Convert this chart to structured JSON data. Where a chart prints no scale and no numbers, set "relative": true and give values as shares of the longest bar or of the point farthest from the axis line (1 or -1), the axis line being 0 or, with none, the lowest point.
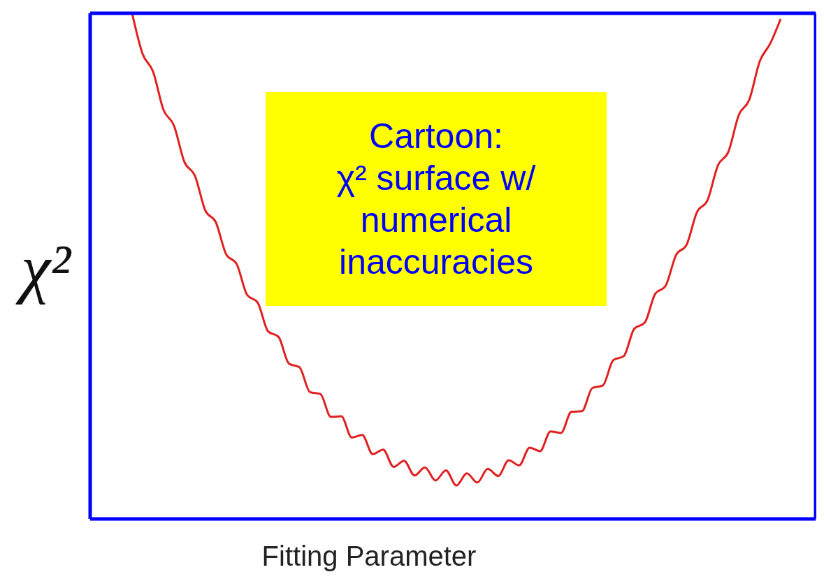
{
  "chart_data": {
    "type": "line",
    "xlabel": "Fitting Parameter",
    "ylabel": "χ²",
    "relative": true,
    "annotations": [
      "Cartoon:\nχ² surface w/\nnumerical\ninaccuracies"
    ],
    "categories": [
      null,
      null,
      null,
      null,
      null,
      null,
      null,
      null,
      null,
      null,
      null,
      null,
      null,
      null,
      null,
      null,
      null,
      null,
      null,
      null,
      null,
      null,
      null,
      null,
      null,
      null,
      null,
      null,
      null,
      null,
      null,
      null,
      null,
      null,
      null,
      null,
      null,
      null,
      null,
      null,
      null,
      null,
      null,
      null,
      null,
      null,
      null,
      null,
      null,
      null,
      null,
      null,
      null,
      null,
      null,
      null,
      null,
      null,
      null,
      null,
      null,
      null,
      null
    ],
    "series": [
      {
        "color": "#e02020",
        "values": [
          1.0,
          0.92,
          0.885,
          0.809,
          0.778,
          0.706,
          0.679,
          0.61,
          0.587,
          0.523,
          0.504,
          0.443,
          0.428,
          0.371,
          0.36,
          0.307,
          0.3,
          0.251,
          0.247,
          0.202,
          0.203,
          0.161,
          0.166,
          0.128,
          0.137,
          0.103,
          0.115,
          0.086,
          0.102,
          0.076,
          0.096,
          0.066,
          0.09,
          0.072,
          0.099,
          0.085,
          0.116,
          0.106,
          0.141,
          0.134,
          0.173,
          0.17,
          0.212,
          0.213,
          0.259,
          0.264,
          0.314,
          0.322,
          0.376,
          0.388,
          0.445,
          0.461,
          0.522,
          0.542,
          0.607,
          0.63,
          0.699,
          0.726,
          0.799,
          0.829,
          0.905,
          0.94,
          0.989
        ]
      }
    ]
  }
}
